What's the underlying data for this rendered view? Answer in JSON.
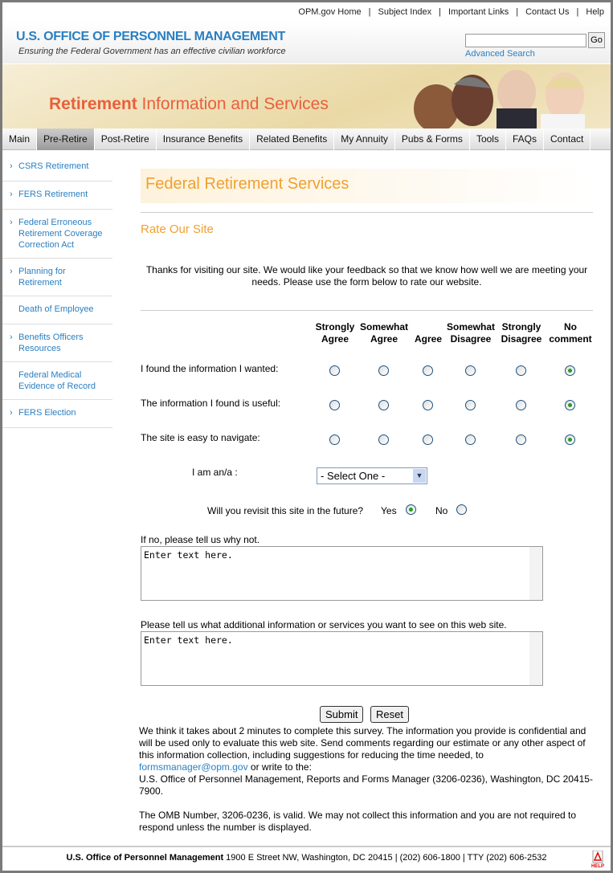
{
  "top_links": [
    "OPM.gov Home",
    "Subject Index",
    "Important Links",
    "Contact Us",
    "Help"
  ],
  "header": {
    "logo": "U.S. OFFICE OF PERSONNEL MANAGEMENT",
    "tagline": "Ensuring the Federal Government has an effective civilian workforce",
    "search_value": "",
    "go_label": "Go",
    "advanced_search": "Advanced Search"
  },
  "banner": {
    "title_bold": "Retirement",
    "title_rest": "Information and Services"
  },
  "nav": {
    "active": "Pre-Retire",
    "items": [
      "Main",
      "Pre-Retire",
      "Post-Retire",
      "Insurance Benefits",
      "Related Benefits",
      "My Annuity",
      "Pubs & Forms",
      "Tools",
      "FAQs",
      "Contact"
    ]
  },
  "sidebar": [
    {
      "label": "CSRS Retirement",
      "arrow": true
    },
    {
      "label": "FERS Retirement",
      "arrow": true
    },
    {
      "label": "Federal Erroneous Retirement Coverage Correction Act",
      "arrow": true
    },
    {
      "label": "Planning for Retirement",
      "arrow": true
    },
    {
      "label": "Death of Employee",
      "arrow": false
    },
    {
      "label": "Benefits Officers Resources",
      "arrow": true
    },
    {
      "label": "Federal Medical Evidence of Record",
      "arrow": false
    },
    {
      "label": "FERS Election",
      "arrow": true
    }
  ],
  "main": {
    "title": "Federal Retirement Services",
    "subtitle": "Rate Our Site",
    "intro": "Thanks for visiting our site. We would like your feedback so that we know how well we are meeting your needs. Please use the form below to rate our website.",
    "columns": [
      [
        "Strongly",
        "Agree"
      ],
      [
        "Somewhat",
        "Agree"
      ],
      [
        "",
        "Agree"
      ],
      [
        "Somewhat",
        "Disagree"
      ],
      [
        "Strongly",
        "Disagree"
      ],
      [
        "No",
        "comment"
      ]
    ],
    "questions": [
      {
        "label": "I found the information I wanted:",
        "selected": 5
      },
      {
        "label": "The information I found is useful:",
        "selected": 5
      },
      {
        "label": "The site is easy to navigate:",
        "selected": 5
      }
    ],
    "iam_label": "I am an/a :",
    "iam_value": "- Select One -",
    "revisit_label": "Will you revisit this site in the future?",
    "revisit_yes": "Yes",
    "revisit_no": "No",
    "revisit_selected": "Yes",
    "why_not_label": "If no, please tell us why not.",
    "why_not_value": "Enter text here.",
    "additional_label": "Please tell us what additional information or services you want to see on this web site.",
    "additional_value": "Enter text here.",
    "submit": "Submit",
    "reset": "Reset",
    "note1": "We think it takes about 2 minutes to complete this survey. The information you provide is confidential and will be used only to evaluate this web site. Send comments regarding our estimate or any other aspect of this information collection, including suggestions for reducing the time needed, to",
    "email": "formsmanager@opm.gov",
    "note2": " or write to the:",
    "note3": "U.S. Office of Personnel Management, Reports and Forms Manager (3206-0236), Washington, DC 20415-7900.",
    "note4": "The OMB Number, 3206-0236, is valid. We may not collect this information and you are not required to respond unless the number is displayed."
  },
  "footer": {
    "org": "U.S. Office of Personnel Management",
    "address": " 1900 E Street NW, Washington, DC 20415 | (202) 606-1800 | TTY (202) 606-2532",
    "help_icon_text": "HELP"
  },
  "colors": {
    "accent_blue": "#2a7fc1",
    "accent_orange": "#f0a030",
    "banner_red": "#e8603c",
    "radio_selected": "#21a121"
  }
}
